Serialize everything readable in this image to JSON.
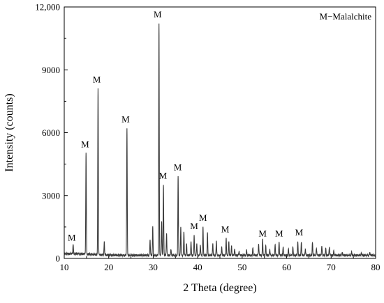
{
  "chart_data": {
    "type": "line",
    "xlabel": "2 Theta (degree)",
    "ylabel": "Intensity (counts)",
    "xlim": [
      10,
      80
    ],
    "ylim": [
      0,
      12000
    ],
    "x_ticks": [
      10,
      20,
      30,
      40,
      50,
      60,
      70,
      80
    ],
    "y_ticks": [
      0,
      3000,
      6000,
      9000,
      12000
    ],
    "y_tick_labels": [
      "0",
      "3000",
      "6000",
      "9000",
      "12,000"
    ],
    "legend": {
      "text": "M−Malalchite",
      "position": "top-right"
    },
    "grid": false,
    "series": [
      {
        "baseline": 150,
        "peaks": [
          {
            "x": 12.0,
            "y": 600
          },
          {
            "x": 14.9,
            "y": 5000
          },
          {
            "x": 17.6,
            "y": 8100
          },
          {
            "x": 19.0,
            "y": 750
          },
          {
            "x": 24.1,
            "y": 6200
          },
          {
            "x": 29.3,
            "y": 900
          },
          {
            "x": 29.9,
            "y": 1500
          },
          {
            "x": 31.3,
            "y": 11200
          },
          {
            "x": 31.9,
            "y": 1800
          },
          {
            "x": 32.3,
            "y": 3500
          },
          {
            "x": 33.0,
            "y": 1200
          },
          {
            "x": 34.0,
            "y": 450
          },
          {
            "x": 35.6,
            "y": 3900
          },
          {
            "x": 36.2,
            "y": 1500
          },
          {
            "x": 36.9,
            "y": 1300
          },
          {
            "x": 37.5,
            "y": 700
          },
          {
            "x": 38.5,
            "y": 800
          },
          {
            "x": 39.2,
            "y": 1100
          },
          {
            "x": 39.8,
            "y": 700
          },
          {
            "x": 40.6,
            "y": 650
          },
          {
            "x": 41.2,
            "y": 1500
          },
          {
            "x": 42.2,
            "y": 1200
          },
          {
            "x": 43.4,
            "y": 700
          },
          {
            "x": 44.2,
            "y": 850
          },
          {
            "x": 45.4,
            "y": 550
          },
          {
            "x": 46.4,
            "y": 1000
          },
          {
            "x": 47.0,
            "y": 800
          },
          {
            "x": 47.6,
            "y": 600
          },
          {
            "x": 48.3,
            "y": 450
          },
          {
            "x": 49.3,
            "y": 350
          },
          {
            "x": 51.0,
            "y": 400
          },
          {
            "x": 52.4,
            "y": 500
          },
          {
            "x": 53.7,
            "y": 700
          },
          {
            "x": 54.6,
            "y": 900
          },
          {
            "x": 55.3,
            "y": 600
          },
          {
            "x": 56.2,
            "y": 450
          },
          {
            "x": 57.4,
            "y": 650
          },
          {
            "x": 58.3,
            "y": 800
          },
          {
            "x": 59.2,
            "y": 550
          },
          {
            "x": 60.4,
            "y": 450
          },
          {
            "x": 61.4,
            "y": 550
          },
          {
            "x": 62.5,
            "y": 800
          },
          {
            "x": 63.3,
            "y": 750
          },
          {
            "x": 64.2,
            "y": 450
          },
          {
            "x": 65.8,
            "y": 750
          },
          {
            "x": 66.7,
            "y": 500
          },
          {
            "x": 67.9,
            "y": 600
          },
          {
            "x": 68.8,
            "y": 500
          },
          {
            "x": 69.6,
            "y": 550
          },
          {
            "x": 70.6,
            "y": 350
          },
          {
            "x": 72.5,
            "y": 300
          },
          {
            "x": 74.6,
            "y": 300
          },
          {
            "x": 76.8,
            "y": 250
          },
          {
            "x": 78.7,
            "y": 300
          }
        ]
      }
    ],
    "annotations": [
      {
        "text": "M",
        "x": 11.7,
        "y": 850
      },
      {
        "text": "M",
        "x": 14.7,
        "y": 5300
      },
      {
        "text": "M",
        "x": 17.3,
        "y": 8400
      },
      {
        "text": "M",
        "x": 23.8,
        "y": 6500
      },
      {
        "text": "M",
        "x": 31.0,
        "y": 11500
      },
      {
        "text": "M",
        "x": 32.2,
        "y": 3800
      },
      {
        "text": "M",
        "x": 35.5,
        "y": 4200
      },
      {
        "text": "M",
        "x": 39.2,
        "y": 1400
      },
      {
        "text": "M",
        "x": 41.2,
        "y": 1800
      },
      {
        "text": "M",
        "x": 46.2,
        "y": 1250
      },
      {
        "text": "M",
        "x": 54.6,
        "y": 1050
      },
      {
        "text": "M",
        "x": 58.3,
        "y": 1050
      },
      {
        "text": "M",
        "x": 62.8,
        "y": 1100
      }
    ]
  }
}
